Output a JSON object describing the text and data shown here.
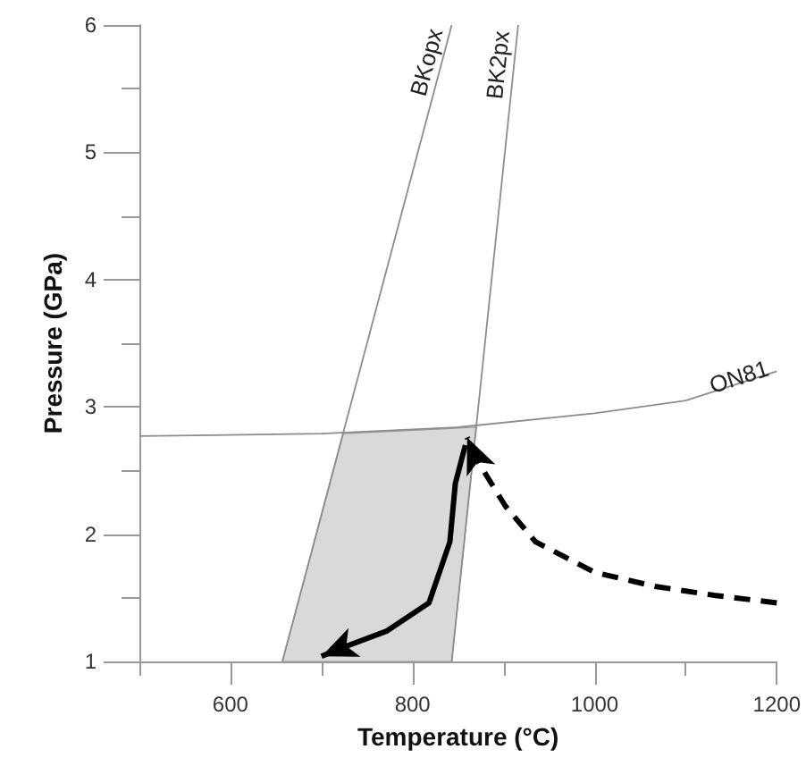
{
  "chart_data": {
    "type": "line",
    "xlabel": "Temperature (°C)",
    "ylabel": "Pressure (GPa)",
    "xlim": [
      500,
      1200
    ],
    "ylim": [
      1,
      6
    ],
    "xticks": [
      {
        "value": 500,
        "label": null
      },
      600,
      {
        "value": 700,
        "label": null
      },
      800,
      {
        "value": 900,
        "label": null
      },
      1000,
      {
        "value": 1100,
        "label": null
      },
      1200
    ],
    "yticks": [
      1,
      {
        "value": 1.5,
        "label": null
      },
      2,
      {
        "value": 2.5,
        "label": null
      },
      3,
      {
        "value": 3.5,
        "label": null
      },
      4,
      {
        "value": 4.5,
        "label": null
      },
      5,
      {
        "value": 5.5,
        "label": null
      },
      6
    ],
    "grid": false,
    "legend": false,
    "marker": "none",
    "series": [
      {
        "type": "area",
        "color": "#d9d9d9",
        "x": [
          657,
          724,
          870,
          843
        ],
        "values": [
          1,
          2.79,
          2.84,
          1
        ]
      },
      {
        "name": "BKopx",
        "color": "#8c8c8c",
        "x": [
          657,
          843
        ],
        "values": [
          1,
          6
        ]
      },
      {
        "name": "BK2px",
        "color": "#8c8c8c",
        "x": [
          843,
          916
        ],
        "values": [
          1,
          6
        ]
      },
      {
        "name": "ON81",
        "color": "#8c8c8c",
        "x": [
          500,
          700,
          850,
          1000,
          1100,
          1200
        ],
        "values": [
          2.77,
          2.79,
          2.84,
          2.95,
          3.05,
          3.28
        ]
      },
      {
        "color": "#000000",
        "line_style": "dashed",
        "x": [
          1200,
          1131,
          1066,
          1000,
          935,
          902,
          870,
          860
        ],
        "values": [
          1.46,
          1.52,
          1.59,
          1.7,
          1.94,
          2.22,
          2.59,
          2.76
        ]
      },
      {
        "color": "#000000",
        "line_style": "solid",
        "x": [
          858,
          847,
          841,
          818,
          772,
          720,
          700
        ],
        "values": [
          2.7,
          2.4,
          1.94,
          1.46,
          1.24,
          1.1,
          1.04
        ]
      }
    ]
  }
}
